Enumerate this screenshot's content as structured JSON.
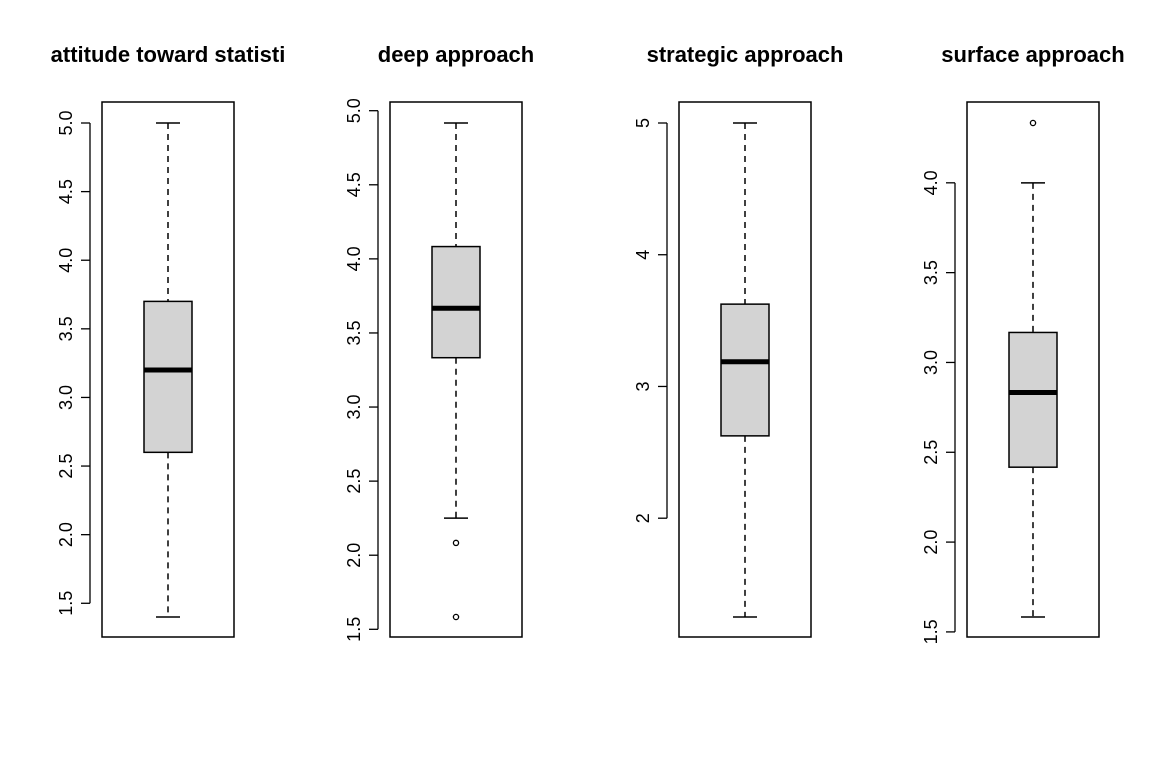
{
  "chart_data": [
    {
      "type": "boxplot",
      "title": "attitude toward statisti",
      "ylim": [
        1.4,
        5.0
      ],
      "ticks": [
        1.5,
        2.0,
        2.5,
        3.0,
        3.5,
        4.0,
        4.5,
        5.0
      ],
      "tick_labels": [
        "1.5",
        "2.0",
        "2.5",
        "3.0",
        "3.5",
        "4.0",
        "4.5",
        "5.0"
      ],
      "whisker_low": 1.4,
      "q1": 2.6,
      "median": 3.2,
      "q3": 3.7,
      "whisker_high": 5.0,
      "outliers": []
    },
    {
      "type": "boxplot",
      "title": "deep approach",
      "ylim": [
        1.583,
        4.917
      ],
      "ticks": [
        1.5,
        2.0,
        2.5,
        3.0,
        3.5,
        4.0,
        4.5,
        5.0
      ],
      "tick_labels": [
        "1.5",
        "2.0",
        "2.5",
        "3.0",
        "3.5",
        "4.0",
        "4.5",
        "5.0"
      ],
      "whisker_low": 2.25,
      "q1": 3.333,
      "median": 3.667,
      "q3": 4.083,
      "whisker_high": 4.917,
      "outliers": [
        2.083,
        1.583
      ]
    },
    {
      "type": "boxplot",
      "title": "strategic approach",
      "ylim": [
        1.25,
        5.0
      ],
      "ticks": [
        2,
        3,
        4,
        5
      ],
      "tick_labels": [
        "2",
        "3",
        "4",
        "5"
      ],
      "whisker_low": 1.25,
      "q1": 2.625,
      "median": 3.188,
      "q3": 3.625,
      "whisker_high": 5.0,
      "outliers": []
    },
    {
      "type": "boxplot",
      "title": "surface approach",
      "ylim": [
        1.583,
        4.333
      ],
      "ticks": [
        1.5,
        2.0,
        2.5,
        3.0,
        3.5,
        4.0
      ],
      "tick_labels": [
        "1.5",
        "2.0",
        "2.5",
        "3.0",
        "3.5",
        "4.0"
      ],
      "whisker_low": 1.583,
      "q1": 2.417,
      "median": 2.833,
      "q3": 3.167,
      "whisker_high": 4.0,
      "outliers": [
        4.333
      ]
    }
  ]
}
